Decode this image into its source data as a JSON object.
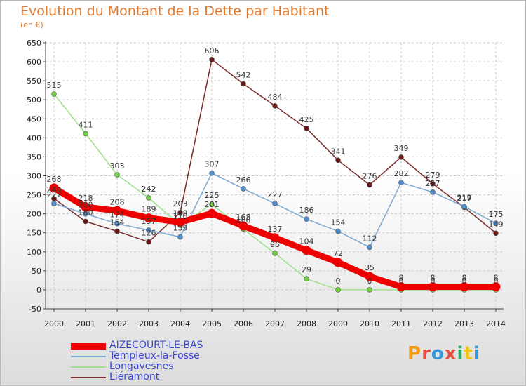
{
  "title": "Evolution du Montant de la Dette par Habitant",
  "subtitle": "(en €)",
  "logo": {
    "text": "Proxiti",
    "letter_colors": [
      "#f39c12",
      "#e74c3c",
      "#3498db",
      "#e74c3c",
      "#27ae60",
      "#f1c40f",
      "#3498db"
    ]
  },
  "chart_data": {
    "type": "line",
    "title": "Evolution du Montant de la Dette par Habitant",
    "ylabel": "(en €)",
    "xlabel": "",
    "x": [
      "2000",
      "2001",
      "2002",
      "2003",
      "2004",
      "2005",
      "2006",
      "2007",
      "2008",
      "2009",
      "2010",
      "2011",
      "2012",
      "2013",
      "2014"
    ],
    "ylim": [
      -50,
      650
    ],
    "yticks": [
      "-50",
      "0",
      "50",
      "100",
      "150",
      "200",
      "250",
      "300",
      "350",
      "400",
      "450",
      "500",
      "550",
      "600",
      "650"
    ],
    "grid": true,
    "legend_position": "bottom-left",
    "series": [
      {
        "name": "AIZECOURT-LE-BAS",
        "color": "#ee0000",
        "values": [
          268,
          218,
          208,
          189,
          178,
          201,
          168,
          137,
          104,
          72,
          35,
          8,
          8,
          8,
          8
        ],
        "labels": [
          "268",
          "218",
          "208",
          "189",
          "178",
          "201",
          "168",
          "137",
          "104",
          "72",
          "35",
          "8",
          "8",
          "8",
          "8"
        ],
        "marker": "#ee0000"
      },
      {
        "name": "Templeux-la-Fosse",
        "color": "#7aa9d4",
        "values": [
          227,
          200,
          174,
          157,
          139,
          307,
          266,
          227,
          186,
          154,
          112,
          282,
          257,
          219,
          175
        ],
        "labels": [
          "227",
          "200",
          "174",
          "157",
          "139",
          "307",
          "266",
          "227",
          "186",
          "154",
          "112",
          "282",
          "257",
          "219",
          "175"
        ],
        "marker": "#4f8fd0"
      },
      {
        "name": "Longavesnes",
        "color": "#9fe08a",
        "values": [
          515,
          411,
          303,
          242,
          170,
          225,
          160,
          96,
          29,
          0,
          0,
          0,
          0,
          0,
          0
        ],
        "labels": [
          "515",
          "411",
          "303",
          "242",
          "170",
          "225",
          "160",
          "96",
          "29",
          "0",
          "0",
          "0",
          "0",
          "0",
          "0"
        ],
        "marker": "#6fcf3f"
      },
      {
        "name": "Liéramont",
        "color": "#7a2a2a",
        "values": [
          240,
          180,
          154,
          126,
          203,
          606,
          542,
          484,
          425,
          341,
          276,
          349,
          279,
          217,
          149
        ],
        "labels": [
          "240",
          "180",
          "154",
          "126",
          "203",
          "606",
          "542",
          "484",
          "425",
          "341",
          "276",
          "349",
          "279",
          "217",
          "149"
        ],
        "marker": "#6a1818"
      }
    ]
  }
}
